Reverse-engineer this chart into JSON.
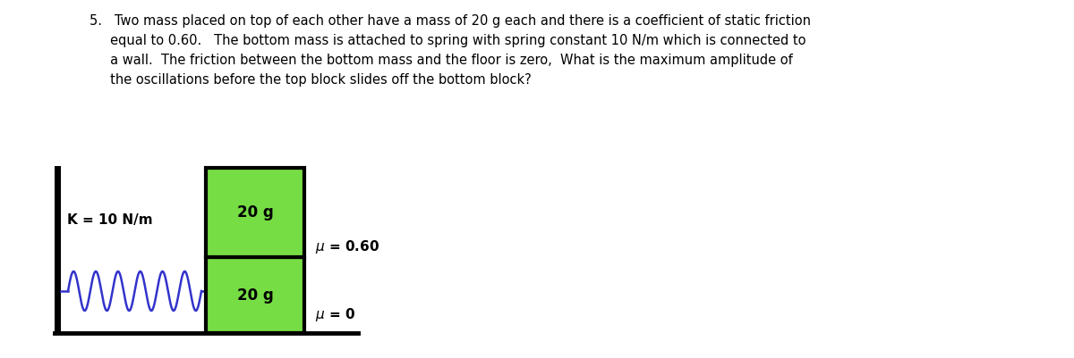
{
  "bg_color": "#ffffff",
  "text_color": "#000000",
  "block_green": "#77dd44",
  "block_outline": "#000000",
  "spring_color": "#3333cc",
  "wall_color": "#000000",
  "floor_color": "#000000",
  "problem_line1": "5.   Two mass placed on top of each other have a mass of 20 g each and there is a coefficient of static friction",
  "problem_line2": "     equal to 0.60.   The bottom mass is attached to spring with spring constant 10 N/m which is connected to",
  "problem_line3": "     a wall.  The friction between the bottom mass and the floor is zero,  What is the maximum amplitude of",
  "problem_line4": "     the oscillations before the top block slides off the bottom block?",
  "fig_width": 12.0,
  "fig_height": 4.01,
  "dpi": 100
}
